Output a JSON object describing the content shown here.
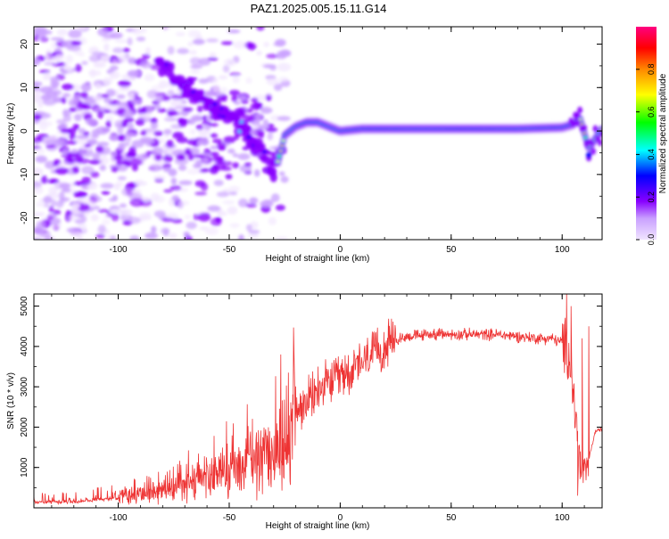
{
  "chart_data": [
    {
      "type": "heatmap",
      "title": "PAZ1.2025.005.15.11.G14",
      "xlabel": "Height of straight line (km)",
      "ylabel": "Frequency (Hz)",
      "xlim": [
        -138,
        118
      ],
      "ylim": [
        -25,
        24
      ],
      "xticks": [
        "-100",
        "-50",
        "0",
        "50",
        "100"
      ],
      "yticks": [
        "-20",
        "-10",
        "0",
        "10",
        "20"
      ],
      "colorbar": {
        "label": "Normalized spectral amplitude",
        "range": [
          0,
          1
        ],
        "ticks": [
          "0.0",
          "0.2",
          "0.4",
          "0.6",
          "0.8"
        ],
        "colors": [
          "#e8d8ff",
          "#8800ff",
          "#0000ff",
          "#00ffff",
          "#00ff00",
          "#ffff00",
          "#ff8800",
          "#ff0000",
          "#ff0088"
        ]
      },
      "ridge": {
        "x": [
          -80,
          -75,
          -70,
          -65,
          -60,
          -55,
          -50,
          -45,
          -40,
          -35,
          -32,
          -30,
          -28,
          -25,
          -20,
          -15,
          -10,
          -5,
          0,
          10,
          20,
          40,
          60,
          80,
          100,
          105,
          108,
          112,
          118
        ],
        "y": [
          15,
          13,
          11,
          9,
          7,
          5,
          3,
          1,
          -2,
          -5,
          -8,
          -10,
          -7,
          -1,
          1,
          2,
          2,
          1,
          0,
          0.5,
          0.5,
          0.5,
          0.5,
          0.5,
          0.8,
          1.5,
          3,
          -4,
          0.5
        ]
      }
    },
    {
      "type": "line",
      "xlabel": "Height of straight line (km)",
      "ylabel": "SNR (10 * v/v)",
      "xlim": [
        -138,
        118
      ],
      "ylim": [
        0,
        5300
      ],
      "xticks": [
        "-100",
        "-50",
        "0",
        "50",
        "100"
      ],
      "yticks": [
        "1000",
        "2000",
        "3000",
        "4000",
        "5000"
      ],
      "color": "#ee3333",
      "envelope": {
        "x": [
          -138,
          -120,
          -100,
          -90,
          -80,
          -70,
          -60,
          -50,
          -40,
          -30,
          -24,
          -22,
          -20,
          -15,
          -10,
          -5,
          0,
          5,
          10,
          15,
          20,
          25,
          30,
          40,
          50,
          60,
          70,
          80,
          90,
          95,
          100,
          103,
          105,
          107,
          108,
          110,
          112,
          115,
          118
        ],
        "y": [
          150,
          150,
          250,
          300,
          400,
          550,
          700,
          900,
          1100,
          1350,
          1600,
          2000,
          2300,
          2600,
          2900,
          3100,
          3250,
          3400,
          3600,
          3800,
          4000,
          4150,
          4250,
          4300,
          4300,
          4300,
          4300,
          4250,
          4200,
          4200,
          4100,
          3800,
          2800,
          1800,
          1000,
          700,
          1200,
          1900,
          1950
        ]
      },
      "spikes": [
        {
          "x": -21,
          "y": 4470
        },
        {
          "x": -10,
          "y": 3500
        },
        {
          "x": 102,
          "y": 5300
        },
        {
          "x": 104,
          "y": 5000
        },
        {
          "x": 107,
          "y": 300
        },
        {
          "x": 109,
          "y": 4200
        },
        {
          "x": 112,
          "y": 4500
        }
      ]
    }
  ]
}
